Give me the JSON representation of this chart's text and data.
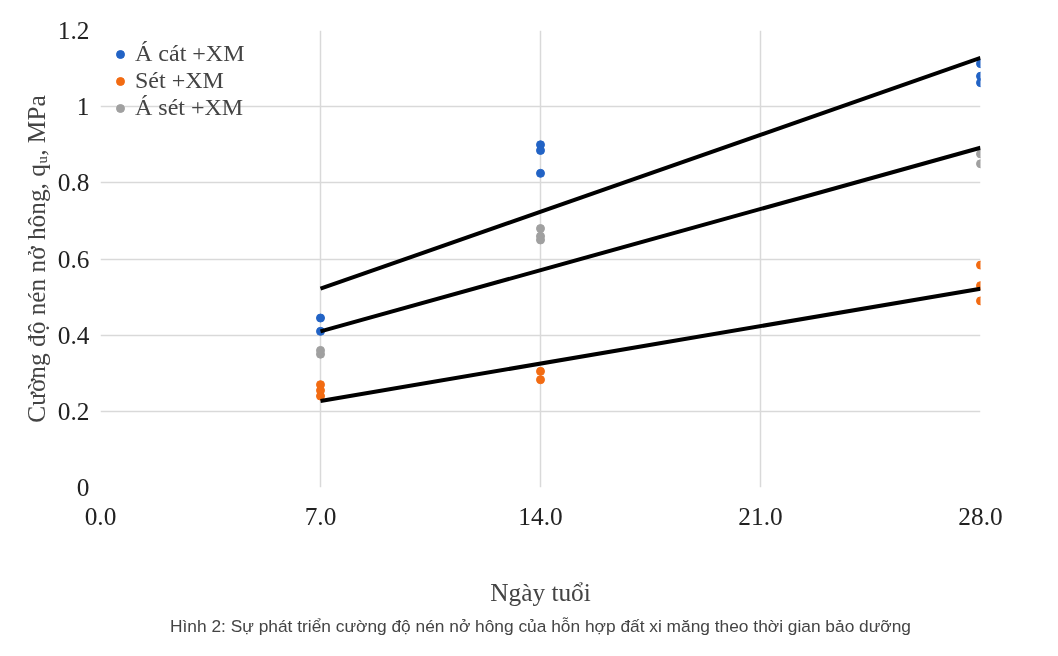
{
  "chart_data": {
    "type": "scatter",
    "xlabel": "Ngày tuổi",
    "ylabel": "Cường độ nén nở hông, qᵤ, MPa",
    "annotations": [
      "Hình 2: Sự phát triển cường độ nén nở hông của hỗn hợp đất xi măng theo thời gian bảo dưỡng"
    ],
    "series": [
      {
        "name": "Á cát +XM",
        "color": "#2263c5",
        "x": [
          7,
          7,
          14,
          14,
          14,
          28,
          28,
          28
        ],
        "values": [
          0.445,
          0.41,
          0.9,
          0.885,
          0.825,
          1.113,
          1.08,
          1.063
        ]
      },
      {
        "name": "Sét +XM",
        "color": "#f26b12",
        "x": [
          7,
          7,
          7,
          14,
          14,
          28,
          28,
          28
        ],
        "values": [
          0.27,
          0.255,
          0.24,
          0.305,
          0.283,
          0.584,
          0.53,
          0.49
        ]
      },
      {
        "name": "Á sét +XM",
        "color": "#a0a0a0",
        "x": [
          7,
          7,
          14,
          14,
          14,
          28,
          28
        ],
        "values": [
          0.36,
          0.35,
          0.68,
          0.66,
          0.65,
          0.876,
          0.85
        ]
      },
      {
        "type": "line",
        "marker": "none",
        "color": "#000000",
        "x": [
          7,
          28
        ],
        "values": [
          0.522,
          1.128
        ]
      },
      {
        "type": "line",
        "marker": "none",
        "color": "#000000",
        "x": [
          7,
          28
        ],
        "values": [
          0.41,
          0.892
        ]
      },
      {
        "type": "line",
        "marker": "none",
        "color": "#000000",
        "x": [
          7,
          28
        ],
        "values": [
          0.227,
          0.522
        ]
      }
    ],
    "xlim": [
      0,
      28
    ],
    "ylim": [
      0,
      1.2
    ],
    "xticks": [
      {
        "value": 0,
        "label": "0.0"
      },
      {
        "value": 7,
        "label": "7.0"
      },
      {
        "value": 14,
        "label": "14.0"
      },
      {
        "value": 21,
        "label": "21.0"
      },
      {
        "value": 28,
        "label": "28.0"
      }
    ],
    "yticks": [
      0,
      0.2,
      0.4,
      0.6,
      0.8,
      1,
      1.2
    ],
    "grid": true,
    "legend": "top left",
    "marker": "circle"
  }
}
